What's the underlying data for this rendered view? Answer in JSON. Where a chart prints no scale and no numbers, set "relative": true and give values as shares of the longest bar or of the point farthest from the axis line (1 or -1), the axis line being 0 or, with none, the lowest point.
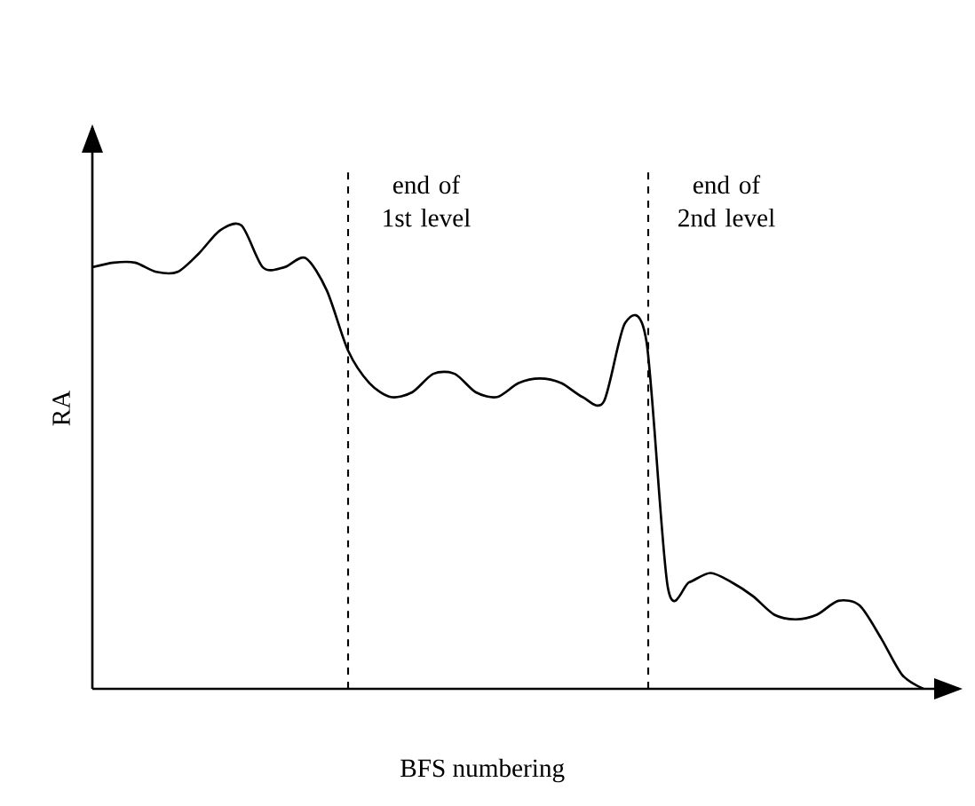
{
  "chart_data": {
    "type": "line",
    "relative": true,
    "xlabel": "BFS numbering",
    "ylabel": "RA",
    "categories": [
      null,
      null,
      null,
      null,
      null,
      null,
      null,
      null,
      null,
      null,
      null,
      null,
      null,
      null,
      null,
      null,
      null,
      null,
      null,
      null,
      null,
      null,
      null,
      null,
      null,
      null,
      null,
      null,
      null,
      null,
      null,
      null,
      null,
      null,
      null,
      null,
      null,
      null,
      null,
      null
    ],
    "series": [
      {
        "color": "#000000",
        "values": [
          0.91,
          0.92,
          0.92,
          0.9,
          0.9,
          0.94,
          0.99,
          1,
          0.91,
          0.91,
          0.93,
          0.86,
          0.73,
          0.66,
          0.63,
          0.64,
          0.68,
          0.68,
          0.64,
          0.63,
          0.66,
          0.67,
          0.66,
          0.63,
          0.62,
          0.79,
          0.75,
          0.22,
          0.23,
          0.25,
          0.23,
          0.2,
          0.16,
          0.15,
          0.16,
          0.19,
          0.18,
          0.11,
          0.03,
          0
        ]
      }
    ],
    "annotations": [
      "end of\n1st level",
      "end of\n2nd level"
    ]
  }
}
